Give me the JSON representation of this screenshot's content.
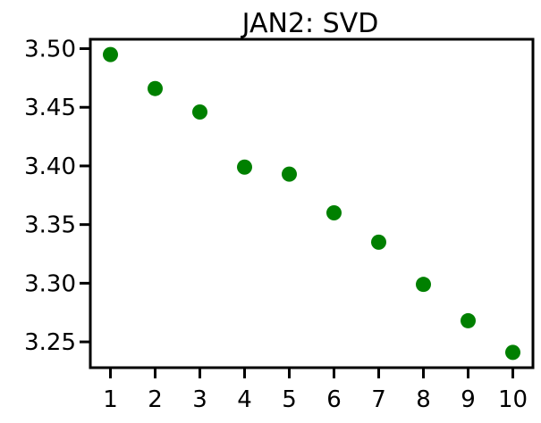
{
  "chart_data": {
    "type": "scatter",
    "title": "JAN2: SVD",
    "xlabel": "",
    "ylabel": "",
    "x": [
      1,
      2,
      3,
      4,
      5,
      6,
      7,
      8,
      9,
      10
    ],
    "y": [
      3.495,
      3.466,
      3.446,
      3.399,
      3.393,
      3.36,
      3.335,
      3.299,
      3.268,
      3.241
    ],
    "xlim": [
      0.55,
      10.45
    ],
    "ylim": [
      3.228,
      3.508
    ],
    "xticks": [
      1,
      2,
      3,
      4,
      5,
      6,
      7,
      8,
      9,
      10
    ],
    "xtick_labels": [
      "1",
      "2",
      "3",
      "4",
      "5",
      "6",
      "7",
      "8",
      "9",
      "10"
    ],
    "yticks": [
      3.25,
      3.3,
      3.35,
      3.4,
      3.45,
      3.5
    ],
    "ytick_labels": [
      "3.25",
      "3.30",
      "3.35",
      "3.40",
      "3.45",
      "3.50"
    ],
    "grid": false,
    "marker_color": "#008000"
  }
}
